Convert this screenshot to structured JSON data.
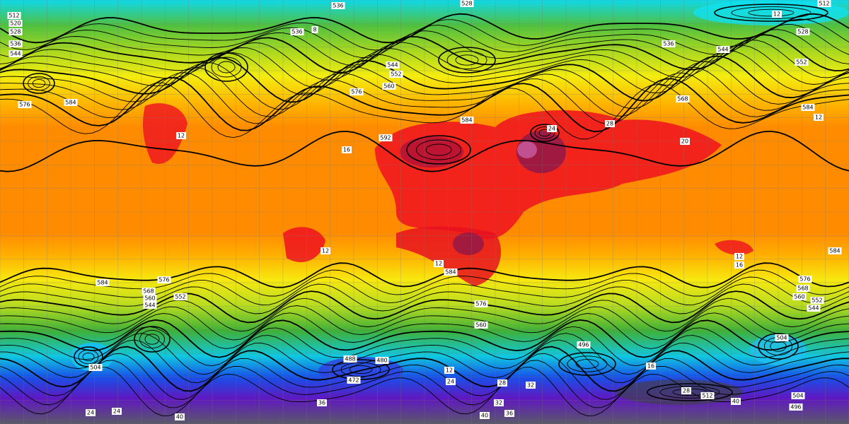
{
  "contour_labels": [
    "528",
    "536",
    "512",
    "520",
    "528",
    "536",
    "544",
    "536",
    "536",
    "544",
    "528",
    "552",
    "544",
    "552",
    "560",
    "576",
    "584",
    "576",
    "568",
    "584",
    "592",
    "16",
    "584",
    "584",
    "584",
    "576",
    "568",
    "560",
    "544",
    "552",
    "584",
    "576",
    "560",
    "576",
    "568",
    "560",
    "552",
    "544",
    "504",
    "496",
    "480",
    "488",
    "472",
    "504",
    "512",
    "28",
    "12",
    "24",
    "28",
    "32",
    "40",
    "16",
    "496",
    "504",
    "40",
    "24",
    "24",
    "40",
    "36",
    "32",
    "36",
    "12",
    "12",
    "16",
    "12",
    "512",
    "12",
    "8",
    "24",
    "28",
    "20",
    "12",
    "12"
  ]
}
